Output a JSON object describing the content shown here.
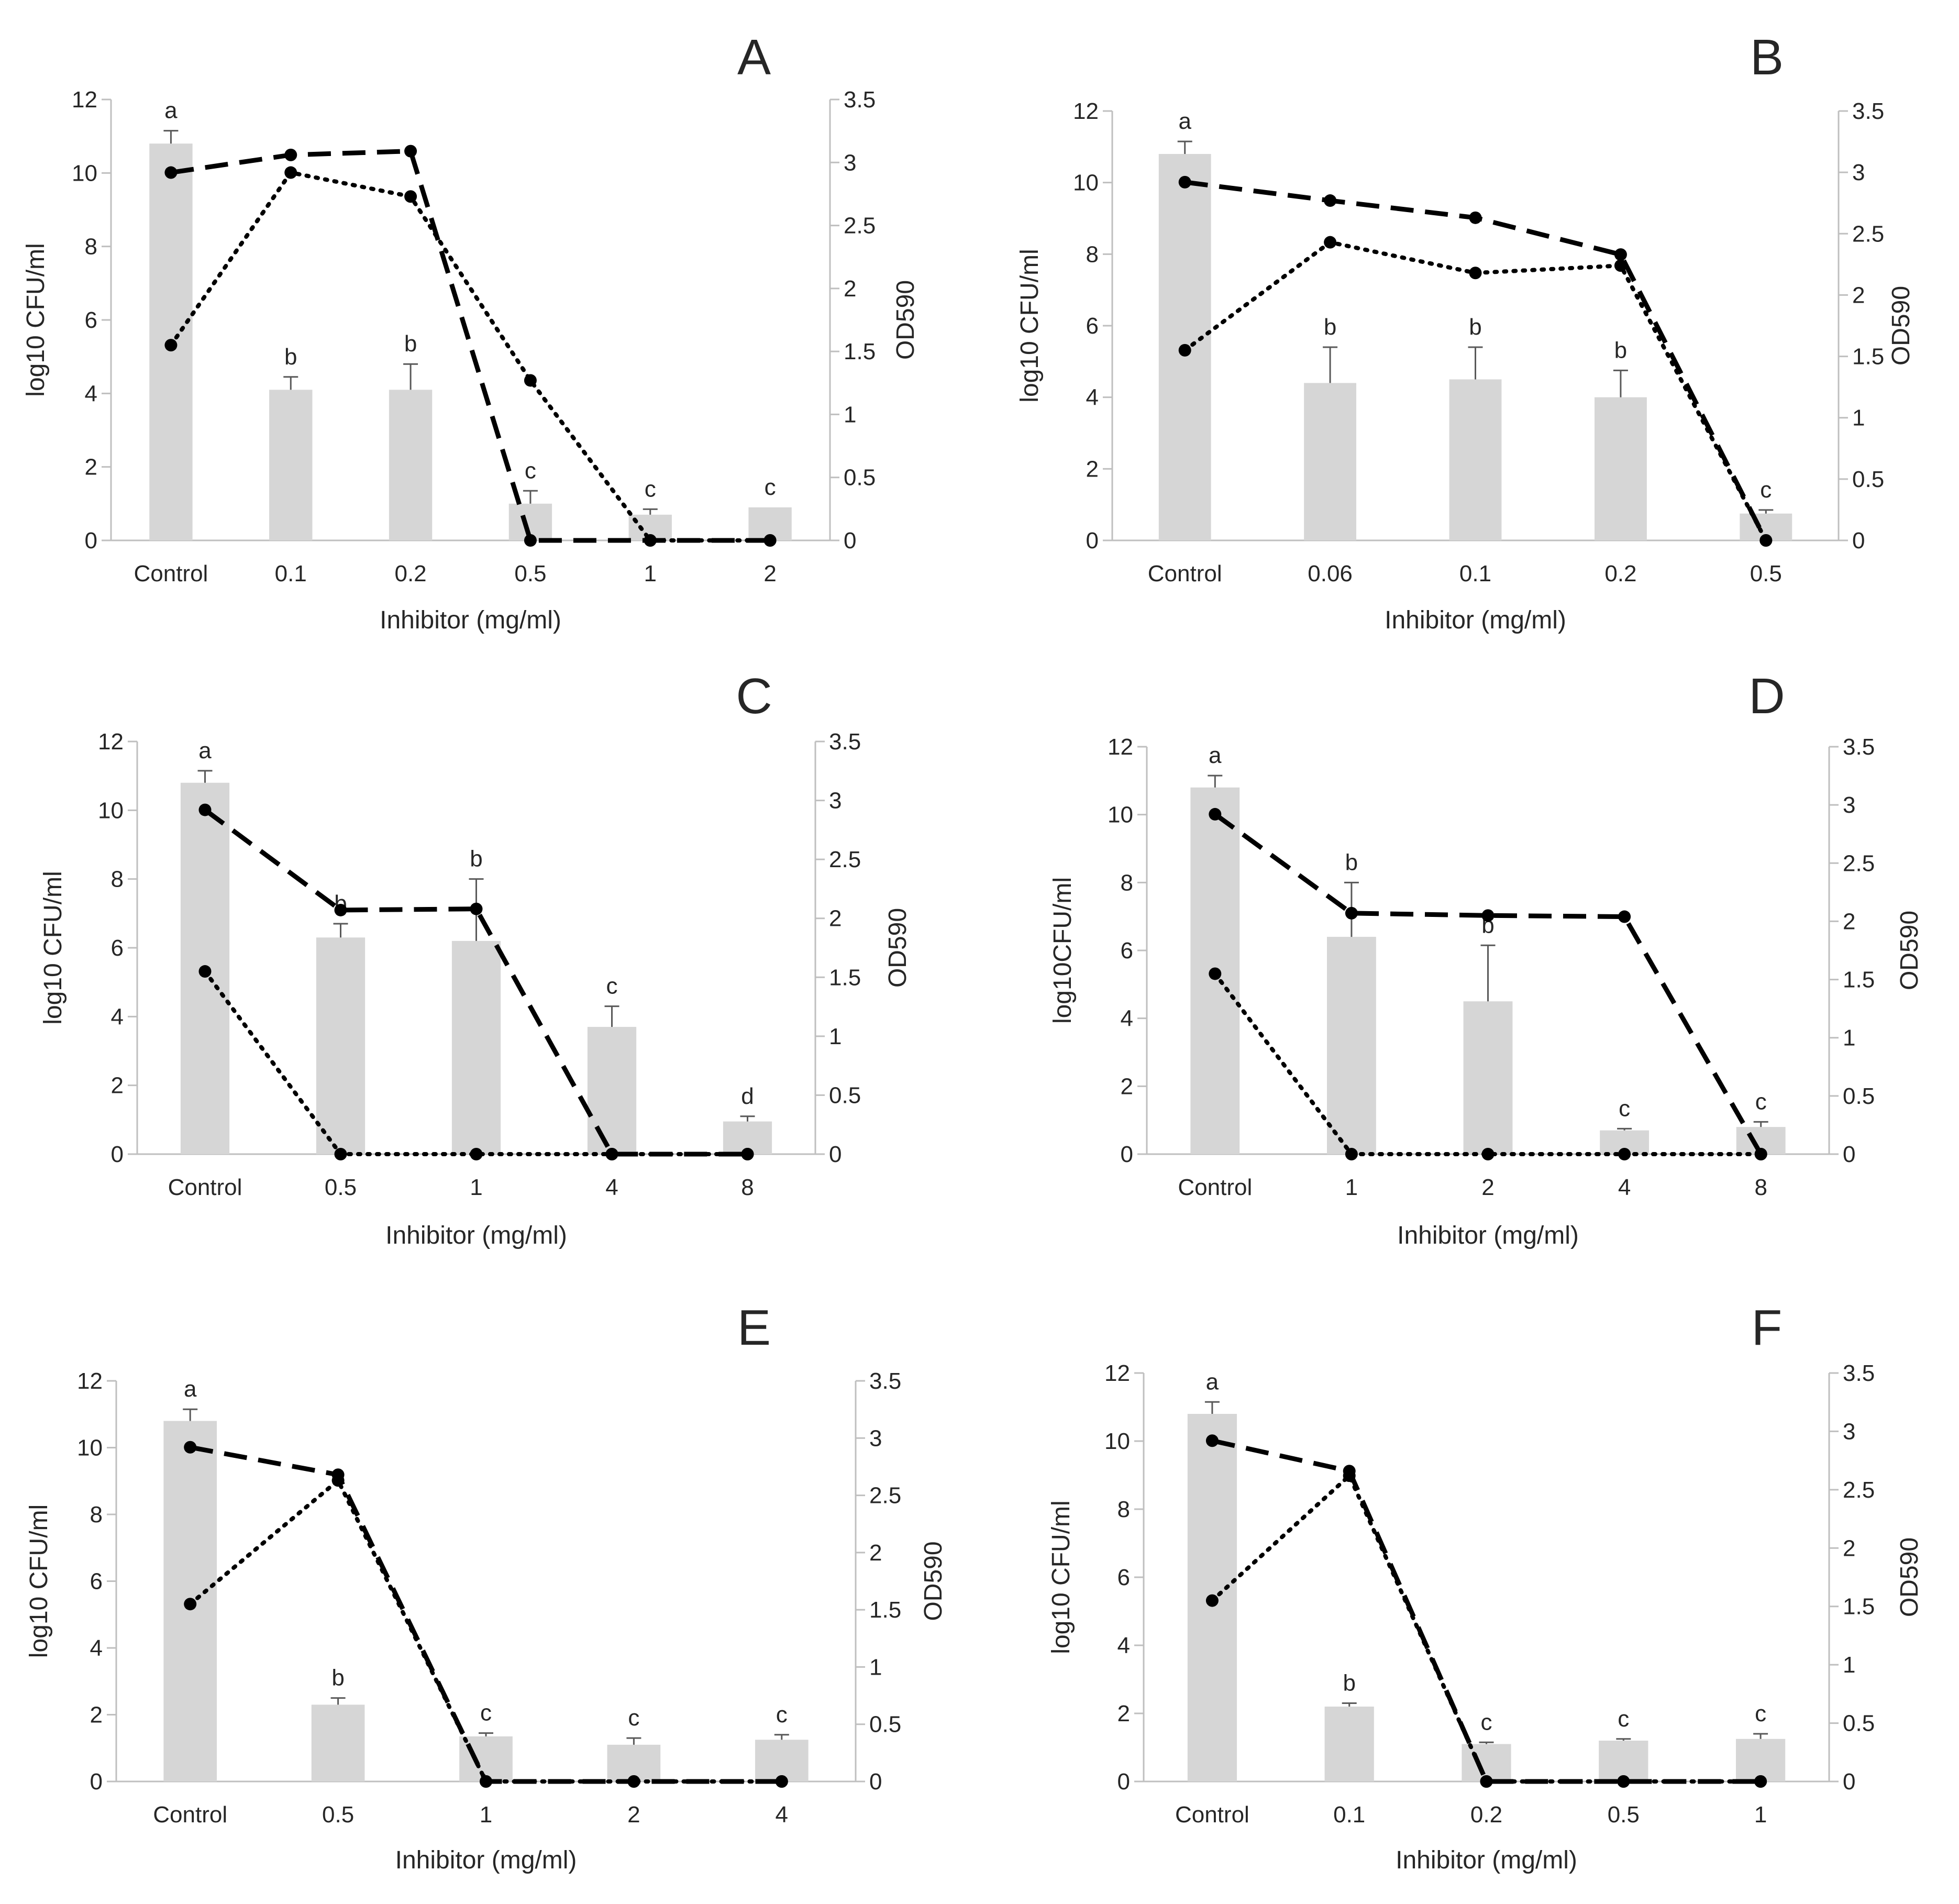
{
  "figure": {
    "colors": {
      "bar": "#d6d6d6",
      "line": "#000000",
      "axis": "#bfbfbf",
      "text": "#262626"
    }
  },
  "chart_data": [
    {
      "panel_label": "A",
      "type": "bar",
      "xlabel": "Inhibitor (mg/ml)",
      "ylabel": "log10 CFU/ml",
      "y2label": "OD590",
      "ylim": [
        0,
        12
      ],
      "y2lim": [
        0,
        3.5
      ],
      "yticks": [
        "0",
        "2",
        "4",
        "6",
        "8",
        "10",
        "12"
      ],
      "y2ticks": [
        "0",
        "0.5",
        "1",
        "1.5",
        "2",
        "2.5",
        "3",
        "3.5"
      ],
      "categories": [
        "Control",
        "0.1",
        "0.2",
        "0.5",
        "1",
        "2"
      ],
      "bars": {
        "axis": "log10 CFU/ml",
        "values": [
          10.8,
          4.1,
          4.1,
          1.0,
          0.7,
          0.9
        ],
        "errors": [
          0.35,
          0.35,
          0.7,
          0.35,
          0.15,
          0.0
        ],
        "labels": [
          "a",
          "b",
          "b",
          "c",
          "c",
          "c"
        ]
      },
      "lines": [
        {
          "style": "dashed",
          "axis": "OD590",
          "values": [
            2.92,
            3.06,
            3.09,
            0.0,
            0.0,
            0.0
          ]
        },
        {
          "style": "dotted",
          "axis": "OD590",
          "values": [
            1.55,
            2.92,
            2.73,
            1.27,
            0.0,
            0.0
          ]
        }
      ]
    },
    {
      "panel_label": "B",
      "type": "bar",
      "xlabel": "Inhibitor (mg/ml)",
      "ylabel": "log10 CFU/ml",
      "y2label": "OD590",
      "ylim": [
        0,
        12
      ],
      "y2lim": [
        0,
        3.5
      ],
      "yticks": [
        "0",
        "2",
        "4",
        "6",
        "8",
        "10",
        "12"
      ],
      "y2ticks": [
        "0",
        "0.5",
        "1",
        "1.5",
        "2",
        "2.5",
        "3",
        "3.5"
      ],
      "categories": [
        "Control",
        "0.06",
        "0.1",
        "0.2",
        "0.5"
      ],
      "bars": {
        "axis": "log10 CFU/ml",
        "values": [
          10.8,
          4.4,
          4.5,
          4.0,
          0.75
        ],
        "errors": [
          0.35,
          1.0,
          0.9,
          0.75,
          0.1
        ],
        "labels": [
          "a",
          "b",
          "b",
          "b",
          "c"
        ]
      },
      "lines": [
        {
          "style": "dashed",
          "axis": "OD590",
          "values": [
            2.92,
            2.77,
            2.63,
            2.33,
            0.0
          ]
        },
        {
          "style": "dotted",
          "axis": "OD590",
          "values": [
            1.55,
            2.43,
            2.18,
            2.24,
            0.0
          ]
        }
      ]
    },
    {
      "panel_label": "C",
      "type": "bar",
      "xlabel": "Inhibitor (mg/ml)",
      "ylabel": "log10 CFU/ml",
      "y2label": "OD590",
      "ylim": [
        0,
        12
      ],
      "y2lim": [
        0,
        3.5
      ],
      "yticks": [
        "0",
        "2",
        "4",
        "6",
        "8",
        "10",
        "12"
      ],
      "y2ticks": [
        "0",
        "0.5",
        "1",
        "1.5",
        "2",
        "2.5",
        "3",
        "3.5"
      ],
      "categories": [
        "Control",
        "0.5",
        "1",
        "4",
        "8"
      ],
      "bars": {
        "axis": "log10 CFU/ml",
        "values": [
          10.8,
          6.3,
          6.2,
          3.7,
          0.95
        ],
        "errors": [
          0.35,
          0.4,
          1.8,
          0.6,
          0.15
        ],
        "labels": [
          "a",
          "b",
          "b",
          "c",
          "d"
        ]
      },
      "lines": [
        {
          "style": "dashed",
          "axis": "OD590",
          "values": [
            2.92,
            2.07,
            2.08,
            0.0,
            0.0
          ]
        },
        {
          "style": "dotted",
          "axis": "OD590",
          "values": [
            1.55,
            0.0,
            0.0,
            0.0,
            0.0
          ]
        }
      ]
    },
    {
      "panel_label": "D",
      "type": "bar",
      "xlabel": "Inhibitor (mg/ml)",
      "ylabel": "log10CFU/ml",
      "y2label": "OD590",
      "ylim": [
        0,
        12
      ],
      "y2lim": [
        0,
        3.5
      ],
      "yticks": [
        "0",
        "2",
        "4",
        "6",
        "8",
        "10",
        "12"
      ],
      "y2ticks": [
        "0",
        "0.5",
        "1",
        "1.5",
        "2",
        "2.5",
        "3",
        "3.5"
      ],
      "categories": [
        "Control",
        "1",
        "2",
        "4",
        "8"
      ],
      "bars": {
        "axis": "log10 CFU/ml",
        "values": [
          10.8,
          6.4,
          4.5,
          0.7,
          0.8
        ],
        "errors": [
          0.35,
          1.6,
          1.65,
          0.05,
          0.15
        ],
        "labels": [
          "a",
          "b",
          "b",
          "c",
          "c"
        ]
      },
      "lines": [
        {
          "style": "dashed",
          "axis": "OD590",
          "values": [
            2.92,
            2.07,
            2.05,
            2.04,
            0.0
          ]
        },
        {
          "style": "dotted",
          "axis": "OD590",
          "values": [
            1.55,
            0.0,
            0.0,
            0.0,
            0.0
          ]
        }
      ]
    },
    {
      "panel_label": "E",
      "type": "bar",
      "xlabel": "Inhibitor (mg/ml)",
      "ylabel": "log10 CFU/ml",
      "y2label": "OD590",
      "ylim": [
        0,
        12
      ],
      "y2lim": [
        0,
        3.5
      ],
      "yticks": [
        "0",
        "2",
        "4",
        "6",
        "8",
        "10",
        "12"
      ],
      "y2ticks": [
        "0",
        "0.5",
        "1",
        "1.5",
        "2",
        "2.5",
        "3",
        "3.5"
      ],
      "categories": [
        "Control",
        "0.5",
        "1",
        "2",
        "4"
      ],
      "bars": {
        "axis": "log10 CFU/ml",
        "values": [
          10.8,
          2.3,
          1.35,
          1.1,
          1.25
        ],
        "errors": [
          0.35,
          0.2,
          0.1,
          0.2,
          0.15
        ],
        "labels": [
          "a",
          "b",
          "c",
          "c",
          "c"
        ]
      },
      "lines": [
        {
          "style": "dashed",
          "axis": "OD590",
          "values": [
            2.92,
            2.68,
            0.0,
            0.0,
            0.0
          ]
        },
        {
          "style": "dotted",
          "axis": "OD590",
          "values": [
            1.55,
            2.63,
            0.0,
            0.0,
            0.0
          ]
        }
      ]
    },
    {
      "panel_label": "F",
      "type": "bar",
      "xlabel": "Inhibitor (mg/ml)",
      "ylabel": "log10 CFU/ml",
      "y2label": "OD590",
      "ylim": [
        0,
        12
      ],
      "y2lim": [
        0,
        3.5
      ],
      "yticks": [
        "0",
        "2",
        "4",
        "6",
        "8",
        "10",
        "12"
      ],
      "y2ticks": [
        "0",
        "0.5",
        "1",
        "1.5",
        "2",
        "2.5",
        "3",
        "3.5"
      ],
      "categories": [
        "Control",
        "0.1",
        "0.2",
        "0.5",
        "1"
      ],
      "bars": {
        "axis": "log10 CFU/ml",
        "values": [
          10.8,
          2.2,
          1.1,
          1.2,
          1.25
        ],
        "errors": [
          0.35,
          0.1,
          0.05,
          0.05,
          0.15
        ],
        "labels": [
          "a",
          "b",
          "c",
          "c",
          "c"
        ]
      },
      "lines": [
        {
          "style": "dashed",
          "axis": "OD590",
          "values": [
            2.92,
            2.66,
            0.0,
            0.0,
            0.0
          ]
        },
        {
          "style": "dotted",
          "axis": "OD590",
          "values": [
            1.55,
            2.62,
            0.0,
            0.0,
            0.0
          ]
        }
      ]
    }
  ]
}
